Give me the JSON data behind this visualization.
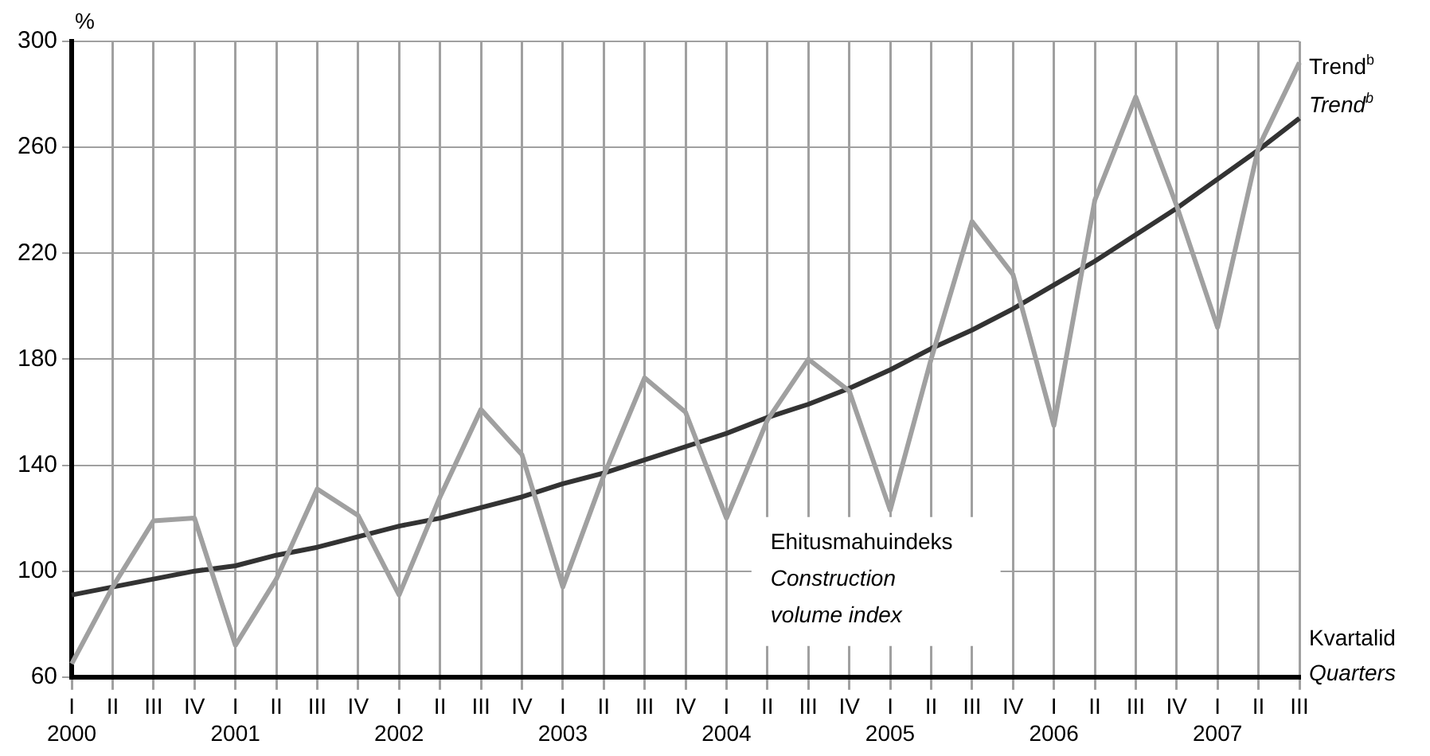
{
  "chart_data": {
    "type": "line",
    "ylabel": "%",
    "xlabel": "Kvartalid\nQuarters",
    "categories": [
      "I\n2000",
      "II",
      "III",
      "IV",
      "I\n2001",
      "II",
      "III",
      "IV",
      "I\n2002",
      "II",
      "III",
      "IV",
      "I\n2003",
      "II",
      "III",
      "IV",
      "I\n2004",
      "II",
      "III",
      "IV",
      "I\n2005",
      "II",
      "III",
      "IV",
      "I\n2006",
      "II",
      "III",
      "IV",
      "I\n2007",
      "II",
      "III"
    ],
    "series": [
      {
        "name": "Ehitusmahuindeks\nConstruction\nvolume index",
        "color": "#a0a0a0",
        "values": [
          65,
          94,
          119,
          120,
          72,
          97,
          131,
          121,
          91,
          128,
          161,
          144,
          94,
          136,
          173,
          160,
          120,
          157,
          180,
          168,
          123,
          180,
          232,
          212,
          155,
          240,
          279,
          238,
          192,
          260,
          292
        ]
      },
      {
        "name": "Trend$^{b}$\nTrend$^{b}$",
        "color": "#333333",
        "values": [
          91,
          94,
          97,
          100,
          102,
          106,
          109,
          113,
          117,
          120,
          124,
          128,
          133,
          137,
          142,
          147,
          152,
          158,
          163,
          169,
          176,
          184,
          191,
          199,
          208,
          217,
          227,
          237,
          248,
          259,
          271
        ]
      }
    ],
    "ylim": [
      60,
      300
    ],
    "yticks": [
      60,
      100,
      140,
      180,
      220,
      260,
      300
    ],
    "grid": true,
    "marker": "none",
    "line_style": "solid",
    "legend": false
  }
}
